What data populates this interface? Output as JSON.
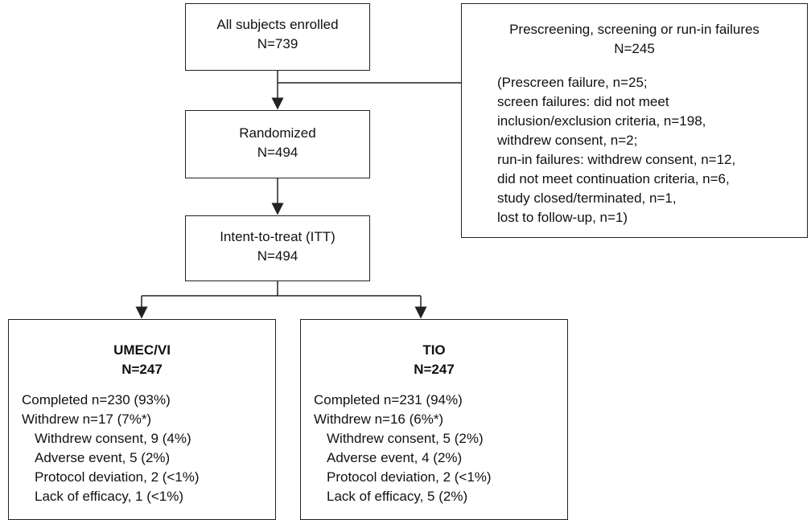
{
  "enrollment": {
    "label": "All subjects enrolled",
    "count": "N=739"
  },
  "exclusions": {
    "title": "Prescreening, screening or run-in failures",
    "count": "N=245",
    "details": [
      "(Prescreen failure, n=25;",
      "screen failures: did not meet",
      "inclusion/exclusion criteria, n=198,",
      "withdrew consent, n=2;",
      "run-in failures: withdrew consent, n=12,",
      "did not meet continuation criteria, n=6,",
      "study closed/terminated, n=1,",
      "lost to follow-up, n=1)"
    ]
  },
  "randomized": {
    "label": "Randomized",
    "count": "N=494"
  },
  "itt": {
    "label": "Intent-to-treat (ITT)",
    "count": "N=494"
  },
  "arms": [
    {
      "name": "UMEC/VI",
      "count": "N=247",
      "completed": "Completed n=230 (93%)",
      "withdrew": "Withdrew n=17 (7%*)",
      "reasons": [
        "Withdrew consent, 9 (4%)",
        "Adverse event, 5 (2%)",
        "Protocol deviation, 2 (<1%)",
        "Lack of efficacy, 1 (<1%)"
      ]
    },
    {
      "name": "TIO",
      "count": "N=247",
      "completed": "Completed n=231 (94%)",
      "withdrew": "Withdrew n=16 (6%*)",
      "reasons": [
        "Withdrew consent, 5 (2%)",
        "Adverse event, 4 (2%)",
        "Protocol deviation, 2 (<1%)",
        "Lack of efficacy, 5 (2%)"
      ]
    }
  ]
}
